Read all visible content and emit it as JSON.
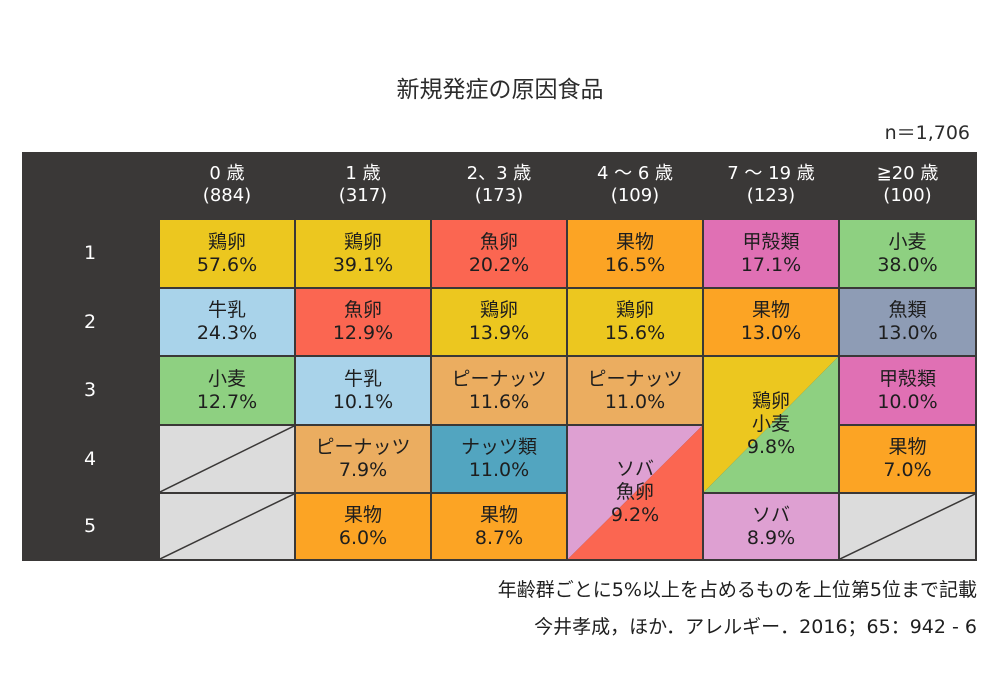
{
  "title": "新規発症の原因食品",
  "n_label": "n＝1,706",
  "columns": [
    {
      "age": "0 歳",
      "count": "(884)"
    },
    {
      "age": "1 歳",
      "count": "(317)"
    },
    {
      "age": "2、3 歳",
      "count": "(173)"
    },
    {
      "age": "4 ～ 6 歳",
      "count": "(109)"
    },
    {
      "age": "7 ～ 19 歳",
      "count": "(123)"
    },
    {
      "age": "≧20 歳",
      "count": "(100)"
    }
  ],
  "ranks": [
    "1",
    "2",
    "3",
    "4",
    "5"
  ],
  "cells": {
    "c0r1": {
      "food": "鶏卵",
      "pct": "57.6%"
    },
    "c0r2": {
      "food": "牛乳",
      "pct": "24.3%"
    },
    "c0r3": {
      "food": "小麦",
      "pct": "12.7%"
    },
    "c1r1": {
      "food": "鶏卵",
      "pct": "39.1%"
    },
    "c1r2": {
      "food": "魚卵",
      "pct": "12.9%"
    },
    "c1r3": {
      "food": "牛乳",
      "pct": "10.1%"
    },
    "c1r4": {
      "food": "ピーナッツ",
      "pct": "7.9%"
    },
    "c1r5": {
      "food": "果物",
      "pct": "6.0%"
    },
    "c2r1": {
      "food": "魚卵",
      "pct": "20.2%"
    },
    "c2r2": {
      "food": "鶏卵",
      "pct": "13.9%"
    },
    "c2r3": {
      "food": "ピーナッツ",
      "pct": "11.6%"
    },
    "c2r4": {
      "food": "ナッツ類",
      "pct": "11.0%"
    },
    "c2r5": {
      "food": "果物",
      "pct": "8.7%"
    },
    "c3r1": {
      "food": "果物",
      "pct": "16.5%"
    },
    "c3r2": {
      "food": "鶏卵",
      "pct": "15.6%"
    },
    "c3r3": {
      "food": "ピーナッツ",
      "pct": "11.0%"
    },
    "c3r45": {
      "food1": "ソバ",
      "food2": "魚卵",
      "pct": "9.2%"
    },
    "c4r1": {
      "food": "甲殻類",
      "pct": "17.1%"
    },
    "c4r2": {
      "food": "果物",
      "pct": "13.0%"
    },
    "c4r34": {
      "food1": "鶏卵",
      "food2": "小麦",
      "pct": "9.8%"
    },
    "c4r5": {
      "food": "ソバ",
      "pct": "8.9%"
    },
    "c5r1": {
      "food": "小麦",
      "pct": "38.0%"
    },
    "c5r2": {
      "food": "魚類",
      "pct": "13.0%"
    },
    "c5r3": {
      "food": "甲殻類",
      "pct": "10.0%"
    },
    "c5r4": {
      "food": "果物",
      "pct": "7.0%"
    }
  },
  "colors": {
    "egg": "#ecc71f",
    "milk": "#a9d3ea",
    "wheat": "#8ed081",
    "fish_roe": "#fb6651",
    "peanut": "#ebad60",
    "nuts": "#52a5c0",
    "fruit": "#fca424",
    "shellfish": "#e070b4",
    "fish": "#8e9cb5",
    "soba": "#dea0d2",
    "empty": "#dcdcdc",
    "frame": "#3a3837"
  },
  "footnote1": "年齢群ごとに5%以上を占めるものを上位第5位まで記載",
  "footnote2": "今井孝成，ほか．アレルギー．2016；65：942 - 6"
}
